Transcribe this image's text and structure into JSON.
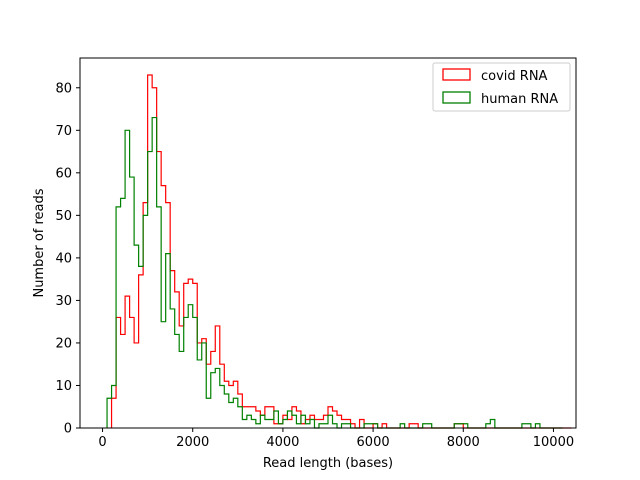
{
  "chart_data": {
    "type": "histogram",
    "title": "",
    "xlabel": "Read length (bases)",
    "ylabel": "Number of reads",
    "xlim": [
      -500,
      10500
    ],
    "ylim": [
      0,
      87
    ],
    "x_ticks": [
      0,
      2000,
      4000,
      6000,
      8000,
      10000
    ],
    "y_ticks": [
      0,
      10,
      20,
      30,
      40,
      50,
      60,
      70,
      80
    ],
    "grid": false,
    "legend_position": "top-right",
    "histtype": "step",
    "series": [
      {
        "name": "covid RNA",
        "color": "#ff0000",
        "bin_start": 200,
        "bin_width": 100,
        "counts": [
          7,
          26,
          22,
          31,
          26,
          20,
          36,
          53,
          83,
          80,
          65,
          57,
          53,
          37,
          32,
          24,
          34,
          35,
          34,
          20,
          21,
          15,
          18,
          24,
          15,
          11,
          10,
          11,
          8,
          5,
          5,
          5,
          4,
          3,
          5,
          5,
          1,
          1,
          3,
          2,
          5,
          4,
          1,
          2,
          3,
          2,
          2,
          3,
          5,
          4,
          3,
          2,
          2,
          1,
          0,
          2,
          0,
          0,
          1,
          0,
          1,
          0,
          0,
          0,
          0,
          0,
          1,
          1,
          0,
          0,
          0,
          0,
          0,
          0,
          0,
          0,
          1,
          1,
          0,
          0,
          0,
          0,
          0,
          0,
          0,
          0,
          0,
          0,
          0,
          0,
          0,
          0,
          0,
          0,
          0,
          0,
          0,
          0,
          0,
          0,
          0,
          0
        ]
      },
      {
        "name": "human RNA",
        "color": "#008000",
        "bin_start": 100,
        "bin_width": 100,
        "counts": [
          7,
          10,
          52,
          54,
          70,
          59,
          43,
          38,
          50,
          65,
          73,
          52,
          25,
          41,
          28,
          22,
          18,
          26,
          29,
          26,
          16,
          20,
          7,
          13,
          14,
          10,
          8,
          6,
          7,
          5,
          2,
          3,
          2,
          1,
          3,
          2,
          2,
          4,
          1,
          2,
          4,
          3,
          1,
          3,
          1,
          2,
          0,
          1,
          1,
          3,
          1,
          0,
          1,
          1,
          0,
          0,
          0,
          1,
          1,
          1,
          0,
          0,
          0,
          0,
          0,
          1,
          0,
          0,
          0,
          0,
          1,
          1,
          0,
          0,
          0,
          0,
          0,
          1,
          1,
          1,
          0,
          0,
          0,
          0,
          1,
          2,
          0,
          0,
          0,
          0,
          0,
          0,
          1,
          1,
          0,
          1,
          0,
          0,
          0,
          0,
          0
        ]
      }
    ]
  }
}
